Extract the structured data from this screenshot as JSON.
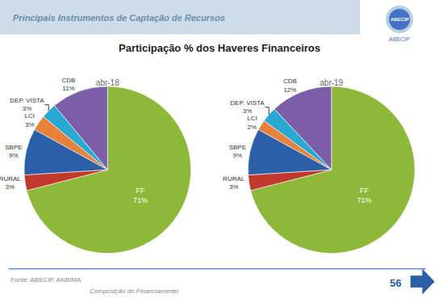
{
  "title": "Participação % dos Haveres Financeiros",
  "subtitle": "Principais Instrumentos de Captação de Recursos",
  "annotations": [
    "Fonte: ABECIP, ANBIMA",
    "Composição do Financiamento",
    "56",
    "ABECIP",
    "ABECIP"
  ],
  "chart_data": [
    {
      "type": "pie",
      "title": "abr-18",
      "categories": [
        "FF",
        "CDB",
        "DEP. VISTA",
        "LCI",
        "SBPE",
        "RURAL"
      ],
      "values": [
        71,
        11,
        3,
        3,
        9,
        3
      ],
      "value_labels": [
        "71%",
        "11%",
        "3%",
        "3%",
        "9%",
        "3%"
      ],
      "colors": [
        "#8db83a",
        "#7b5ea7",
        "#29a8d4",
        "#e8813a",
        "#2b5fa8",
        "#c0392b"
      ],
      "data_labels": true
    },
    {
      "type": "pie",
      "title": "abr-19",
      "categories": [
        "FF",
        "CDB",
        "DEP. VISTA",
        "LCI",
        "SBPE",
        "RURAL"
      ],
      "values": [
        71,
        12,
        3,
        2,
        9,
        3
      ],
      "value_labels": [
        "71%",
        "12%",
        "3%",
        "2%",
        "9%",
        "3%"
      ],
      "colors": [
        "#8db83a",
        "#7b5ea7",
        "#29a8d4",
        "#e8813a",
        "#2b5fa8",
        "#c0392b"
      ],
      "data_labels": true
    }
  ]
}
